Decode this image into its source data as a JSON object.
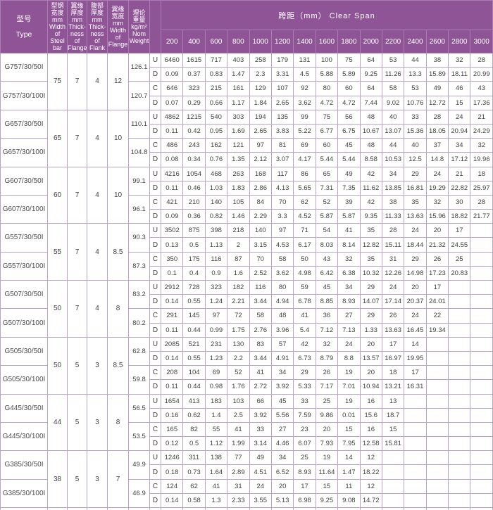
{
  "colors": {
    "header_bg": "#8f5496",
    "header_grid": "#a87fb0",
    "body_grid": "#b7a3c3",
    "text": "#3f3f3f",
    "header_text": "#ffffff"
  },
  "header": {
    "type": "型号\nType",
    "width_steel": "型钢\n宽度\nmm\nWidth\nof\nSteel\nbar",
    "thick_flange": "翼缘\n厚度\nmm\nThick-\nness\nof\nFlange",
    "thick_flank": "腹部\n厚度\nmm\nThick-\nness\nof\nFlank",
    "width_flange": "翼缘\n宽度\nmm\nWidth\nof\nFlange",
    "nom_weight": "理论\n重量\nkg/m²\nNom\nWeight",
    "clear_span": "跨距（mm） Clear Span",
    "spans": [
      "200",
      "400",
      "600",
      "800",
      "1000",
      "1200",
      "1400",
      "1600",
      "1800",
      "2000",
      "2200",
      "2400",
      "2600",
      "2800",
      "3000"
    ]
  },
  "blocks": [
    {
      "type_a": "G757/30/50I",
      "type_b": "G757/30/100I",
      "dims": [
        "75",
        "7",
        "4",
        "12"
      ],
      "weight_a": "126.1",
      "weight_b": "120.7",
      "rows": [
        {
          "label": "U",
          "values": [
            "6460",
            "1615",
            "717",
            "403",
            "258",
            "179",
            "131",
            "100",
            "75",
            "64",
            "53",
            "44",
            "38",
            "32",
            "28"
          ]
        },
        {
          "label": "D",
          "values": [
            "0.09",
            "0.37",
            "0.83",
            "1.47",
            "2.3",
            "3.31",
            "4.5",
            "5.88",
            "5.89",
            "9.25",
            "11.26",
            "13.3",
            "15.89",
            "18.11",
            "20.99"
          ]
        },
        {
          "label": "C",
          "values": [
            "646",
            "323",
            "215",
            "161",
            "129",
            "107",
            "92",
            "80",
            "60",
            "64",
            "58",
            "53",
            "49",
            "46",
            "43"
          ]
        },
        {
          "label": "D",
          "values": [
            "0.07",
            "0.29",
            "0.66",
            "1.17",
            "1.84",
            "2.65",
            "3.62",
            "4.72",
            "4.72",
            "7.44",
            "9.02",
            "10.76",
            "12.72",
            "15",
            "17.36"
          ]
        }
      ]
    },
    {
      "type_a": "G657/30/50I",
      "type_b": "G657/30/100I",
      "dims": [
        "65",
        "7",
        "4",
        "10"
      ],
      "weight_a": "110.1",
      "weight_b": "104.8",
      "rows": [
        {
          "label": "U",
          "values": [
            "4862",
            "1215",
            "540",
            "303",
            "194",
            "135",
            "99",
            "75",
            "56",
            "48",
            "40",
            "33",
            "28",
            "24",
            "21"
          ]
        },
        {
          "label": "D",
          "values": [
            "0.11",
            "0.42",
            "0.95",
            "1.69",
            "2.65",
            "3.83",
            "5.22",
            "6.77",
            "6.75",
            "10.67",
            "13.07",
            "15.36",
            "18.05",
            "20.94",
            "24.29"
          ]
        },
        {
          "label": "C",
          "values": [
            "486",
            "243",
            "162",
            "121",
            "97",
            "81",
            "69",
            "60",
            "45",
            "48",
            "44",
            "40",
            "37",
            "34",
            "32"
          ]
        },
        {
          "label": "D",
          "values": [
            "0.08",
            "0.34",
            "0.76",
            "1.35",
            "2.12",
            "3.07",
            "4.17",
            "5.44",
            "5.44",
            "8.58",
            "10.53",
            "12.5",
            "14.8",
            "17.12",
            "19.96"
          ]
        }
      ]
    },
    {
      "type_a": "G607/30/50I",
      "type_b": "G607/30/100I",
      "dims": [
        "60",
        "7",
        "4",
        "10"
      ],
      "weight_a": "99.1",
      "weight_b": "96.1",
      "rows": [
        {
          "label": "U",
          "values": [
            "4216",
            "1054",
            "468",
            "263",
            "168",
            "117",
            "86",
            "65",
            "49",
            "42",
            "34",
            "29",
            "24",
            "21",
            "18"
          ]
        },
        {
          "label": "D",
          "values": [
            "0.11",
            "0.46",
            "1.03",
            "1.83",
            "2.86",
            "4.13",
            "5.65",
            "7.31",
            "7.35",
            "11.62",
            "13.85",
            "16.81",
            "19.29",
            "22.82",
            "25.97"
          ]
        },
        {
          "label": "C",
          "values": [
            "421",
            "210",
            "140",
            "105",
            "84",
            "70",
            "62",
            "52",
            "39",
            "42",
            "38",
            "35",
            "32",
            "30",
            "28"
          ]
        },
        {
          "label": "D",
          "values": [
            "0.09",
            "0.36",
            "0.82",
            "1.46",
            "2.29",
            "3.3",
            "4.52",
            "5.87",
            "5.87",
            "9.35",
            "11.33",
            "13.63",
            "15.96",
            "18.82",
            "21.77"
          ]
        }
      ]
    },
    {
      "type_a": "G557/30/50I",
      "type_b": "G557/30/100I",
      "dims": [
        "55",
        "7",
        "4",
        "8.5"
      ],
      "weight_a": "90.3",
      "weight_b": "87.3",
      "rows": [
        {
          "label": "U",
          "values": [
            "3502",
            "875",
            "398",
            "218",
            "140",
            "97",
            "71",
            "54",
            "41",
            "35",
            "28",
            "24",
            "20",
            "17",
            ""
          ]
        },
        {
          "label": "D",
          "values": [
            "0.13",
            "0.5",
            "1.13",
            "2",
            "3.15",
            "4.53",
            "6.17",
            "8.03",
            "8.14",
            "12.82",
            "15.11",
            "18.44",
            "21.32",
            "24.55",
            ""
          ]
        },
        {
          "label": "C",
          "values": [
            "350",
            "175",
            "116",
            "87",
            "70",
            "58",
            "50",
            "43",
            "32",
            "35",
            "31",
            "29",
            "26",
            "25",
            ""
          ]
        },
        {
          "label": "D",
          "values": [
            "0.1",
            "0.4",
            "0.9",
            "1.6",
            "2.52",
            "3.62",
            "4.98",
            "6.42",
            "6.38",
            "10.32",
            "12.26",
            "14.98",
            "17.23",
            "20.83",
            ""
          ]
        }
      ]
    },
    {
      "type_a": "G507/30/50I",
      "type_b": "G507/30/100I",
      "dims": [
        "50",
        "7",
        "4",
        "8"
      ],
      "weight_a": "83.2",
      "weight_b": "80.2",
      "rows": [
        {
          "label": "U",
          "values": [
            "2912",
            "728",
            "323",
            "182",
            "116",
            "80",
            "59",
            "45",
            "34",
            "29",
            "24",
            "20",
            "17",
            "",
            ""
          ]
        },
        {
          "label": "D",
          "values": [
            "0.14",
            "0.55",
            "1.24",
            "2.21",
            "3.44",
            "4.94",
            "6.78",
            "8.85",
            "8.93",
            "14.07",
            "17.14",
            "20.37",
            "24.01",
            "",
            ""
          ]
        },
        {
          "label": "C",
          "values": [
            "291",
            "145",
            "97",
            "72",
            "58",
            "48",
            "41",
            "36",
            "27",
            "29",
            "26",
            "24",
            "22",
            "",
            ""
          ]
        },
        {
          "label": "D",
          "values": [
            "0.11",
            "0.44",
            "0.99",
            "1.75",
            "2.76",
            "3.96",
            "5.4",
            "7.12",
            "7.13",
            "1.33",
            "13.63",
            "16.45",
            "19.34",
            "",
            ""
          ]
        }
      ]
    },
    {
      "type_a": "G505/30/50I",
      "type_b": "G505/30/100I",
      "dims": [
        "50",
        "5",
        "3",
        "8.5"
      ],
      "weight_a": "62.8",
      "weight_b": "59.8",
      "rows": [
        {
          "label": "U",
          "values": [
            "2085",
            "521",
            "231",
            "130",
            "83",
            "57",
            "42",
            "32",
            "24",
            "20",
            "17",
            "14",
            "",
            "",
            ""
          ]
        },
        {
          "label": "D",
          "values": [
            "0.14",
            "0.55",
            "1.23",
            "2.2",
            "3.44",
            "4.91",
            "6.73",
            "8.79",
            "8.8",
            "13.57",
            "16.97",
            "19.95",
            "",
            "",
            ""
          ]
        },
        {
          "label": "C",
          "values": [
            "208",
            "104",
            "69",
            "52",
            "41",
            "34",
            "29",
            "26",
            "19",
            "20",
            "18",
            "17",
            "",
            "",
            ""
          ]
        },
        {
          "label": "D",
          "values": [
            "0.11",
            "0.44",
            "0.98",
            "1.76",
            "2.72",
            "3.92",
            "5.33",
            "7.17",
            "7.01",
            "10.94",
            "13.21",
            "16.31",
            "",
            "",
            ""
          ]
        }
      ]
    },
    {
      "type_a": "G445/30/50I",
      "type_b": "G445/30/100I",
      "dims": [
        "44",
        "5",
        "3",
        "8"
      ],
      "weight_a": "56.5",
      "weight_b": "53.5",
      "rows": [
        {
          "label": "U",
          "values": [
            "1654",
            "413",
            "183",
            "103",
            "66",
            "45",
            "33",
            "25",
            "19",
            "16",
            "13",
            "",
            "",
            "",
            ""
          ]
        },
        {
          "label": "D",
          "values": [
            "0.16",
            "0.62",
            "1.4",
            "2.5",
            "3.92",
            "5.56",
            "7.59",
            "9.86",
            "0.01",
            "15.6",
            "18.7",
            "",
            "",
            "",
            ""
          ]
        },
        {
          "label": "C",
          "values": [
            "165",
            "82",
            "55",
            "41",
            "33",
            "27",
            "23",
            "20",
            "15",
            "16",
            "15",
            "",
            "",
            "",
            ""
          ]
        },
        {
          "label": "D",
          "values": [
            "0.12",
            "0.5",
            "1.12",
            "1.99",
            "3.14",
            "4.46",
            "6.07",
            "7.93",
            "7.95",
            "12.58",
            "15.81",
            "",
            "",
            "",
            ""
          ]
        }
      ]
    },
    {
      "type_a": "G385/30/50I",
      "type_b": "G385/30/100I",
      "dims": [
        "38",
        "5",
        "3",
        "7"
      ],
      "weight_a": "49.9",
      "weight_b": "46.9",
      "rows": [
        {
          "label": "U",
          "values": [
            "1246",
            "311",
            "138",
            "77",
            "49",
            "34",
            "25",
            "19",
            "14",
            "12",
            "",
            "",
            "",
            "",
            ""
          ]
        },
        {
          "label": "D",
          "values": [
            "0.18",
            "0.73",
            "1.64",
            "2.89",
            "4.51",
            "6.52",
            "8.93",
            "11.64",
            "1.47",
            "18.22",
            "",
            "",
            "",
            "",
            ""
          ]
        },
        {
          "label": "C",
          "values": [
            "124",
            "62",
            "41",
            "31",
            "24",
            "20",
            "17",
            "15",
            "11",
            "12",
            "",
            "",
            "",
            "",
            ""
          ]
        },
        {
          "label": "D",
          "values": [
            "0.14",
            "0.58",
            "1.3",
            "2.33",
            "3.55",
            "5.13",
            "6.98",
            "9.25",
            "9.08",
            "14.72",
            "",
            "",
            "",
            "",
            ""
          ]
        }
      ]
    }
  ]
}
